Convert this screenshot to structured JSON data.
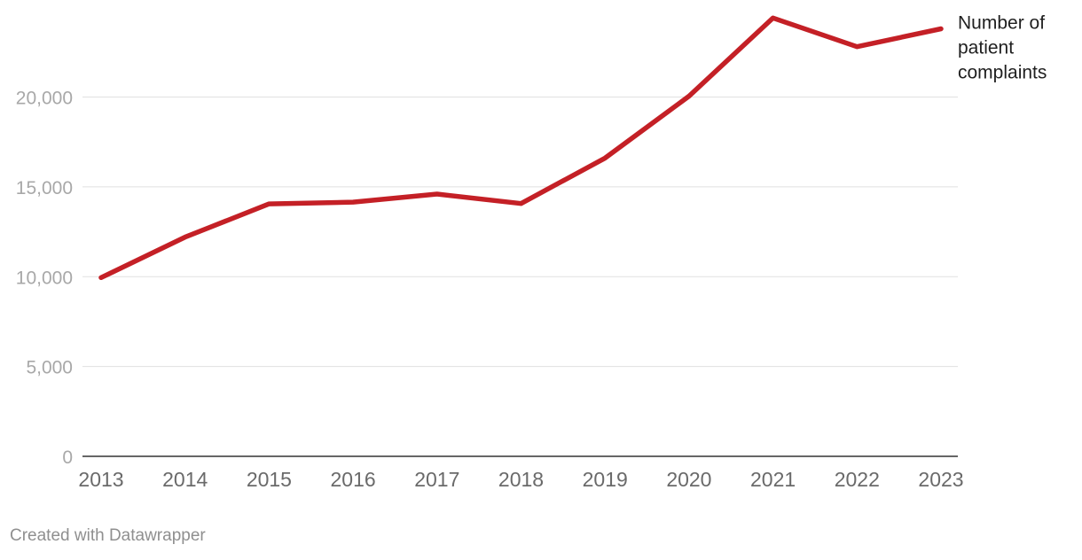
{
  "chart_data": {
    "type": "line",
    "x": [
      "2013",
      "2014",
      "2015",
      "2016",
      "2017",
      "2018",
      "2019",
      "2020",
      "2021",
      "2022",
      "2023"
    ],
    "series": [
      {
        "name": "Number of patient complaints",
        "values": [
          9950,
          12200,
          14050,
          14150,
          14600,
          14070,
          16600,
          20050,
          24400,
          22800,
          23800
        ]
      }
    ],
    "label_lines": [
      "Number of",
      "patient",
      "complaints"
    ],
    "y_ticks": [
      {
        "value": 0,
        "label": "0"
      },
      {
        "value": 5000,
        "label": "5,000"
      },
      {
        "value": 10000,
        "label": "10,000"
      },
      {
        "value": 15000,
        "label": "15,000"
      },
      {
        "value": 20000,
        "label": "20,000"
      }
    ],
    "ylim": [
      0,
      25000
    ],
    "grid": true,
    "line_color": "#c42026",
    "title": "",
    "xlabel": "",
    "ylabel": ""
  },
  "footer": {
    "credit": "Created with Datawrapper"
  }
}
